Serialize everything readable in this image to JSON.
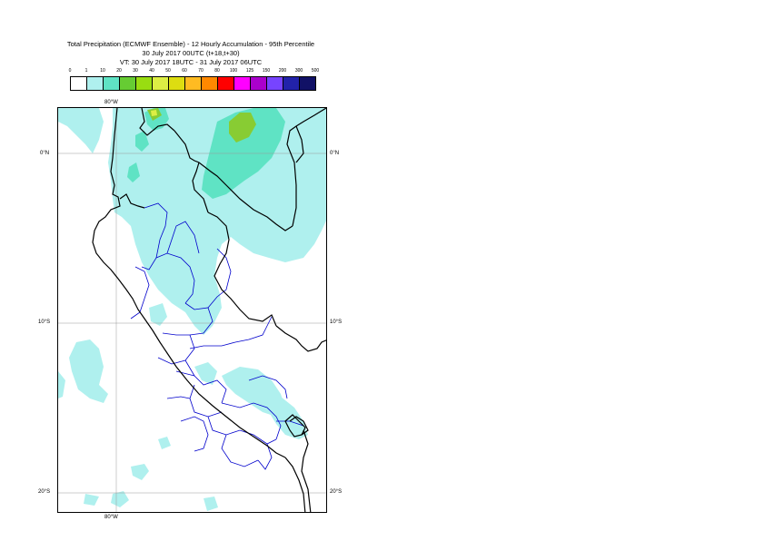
{
  "title": {
    "line1": "Total Precipitation (ECMWF Ensemble) - 12 Hourly Accumulation - 95th Percentile",
    "line2": "30 July 2017 00UTC (t+18,t+30)",
    "line3": "VT: 30 July 2017 18UTC - 31 July 2017 06UTC"
  },
  "legend": {
    "thresholds": [
      "0",
      "1",
      "10",
      "20",
      "30",
      "40",
      "50",
      "60",
      "70",
      "80",
      "100",
      "125",
      "150",
      "200",
      "300",
      "500"
    ],
    "colors": [
      "#ffffff",
      "#aff0ee",
      "#5fe3c4",
      "#66cc33",
      "#99dd11",
      "#ddee44",
      "#dddd11",
      "#ffbb22",
      "#ff8800",
      "#ff0000",
      "#ff00ff",
      "#aa00cc",
      "#7744ff",
      "#2222aa",
      "#111166"
    ]
  },
  "axes": {
    "lon_top": "80°W",
    "lon_bottom": "80°W",
    "lat_0_left": "0°N",
    "lat_0_right": "0°N",
    "lat_10_left": "10°S",
    "lat_10_right": "10°S",
    "lat_20_left": "20°S",
    "lat_20_right": "20°S"
  },
  "map": {
    "precip_low_color": "#aff0ee",
    "precip_mid_color": "#5fe3c4",
    "precip_high_color": "#88cc33",
    "precip_peak_color": "#ddee44",
    "country_border_color": "#000000",
    "region_border_color": "#0000cc",
    "grid_color": "#999999"
  }
}
